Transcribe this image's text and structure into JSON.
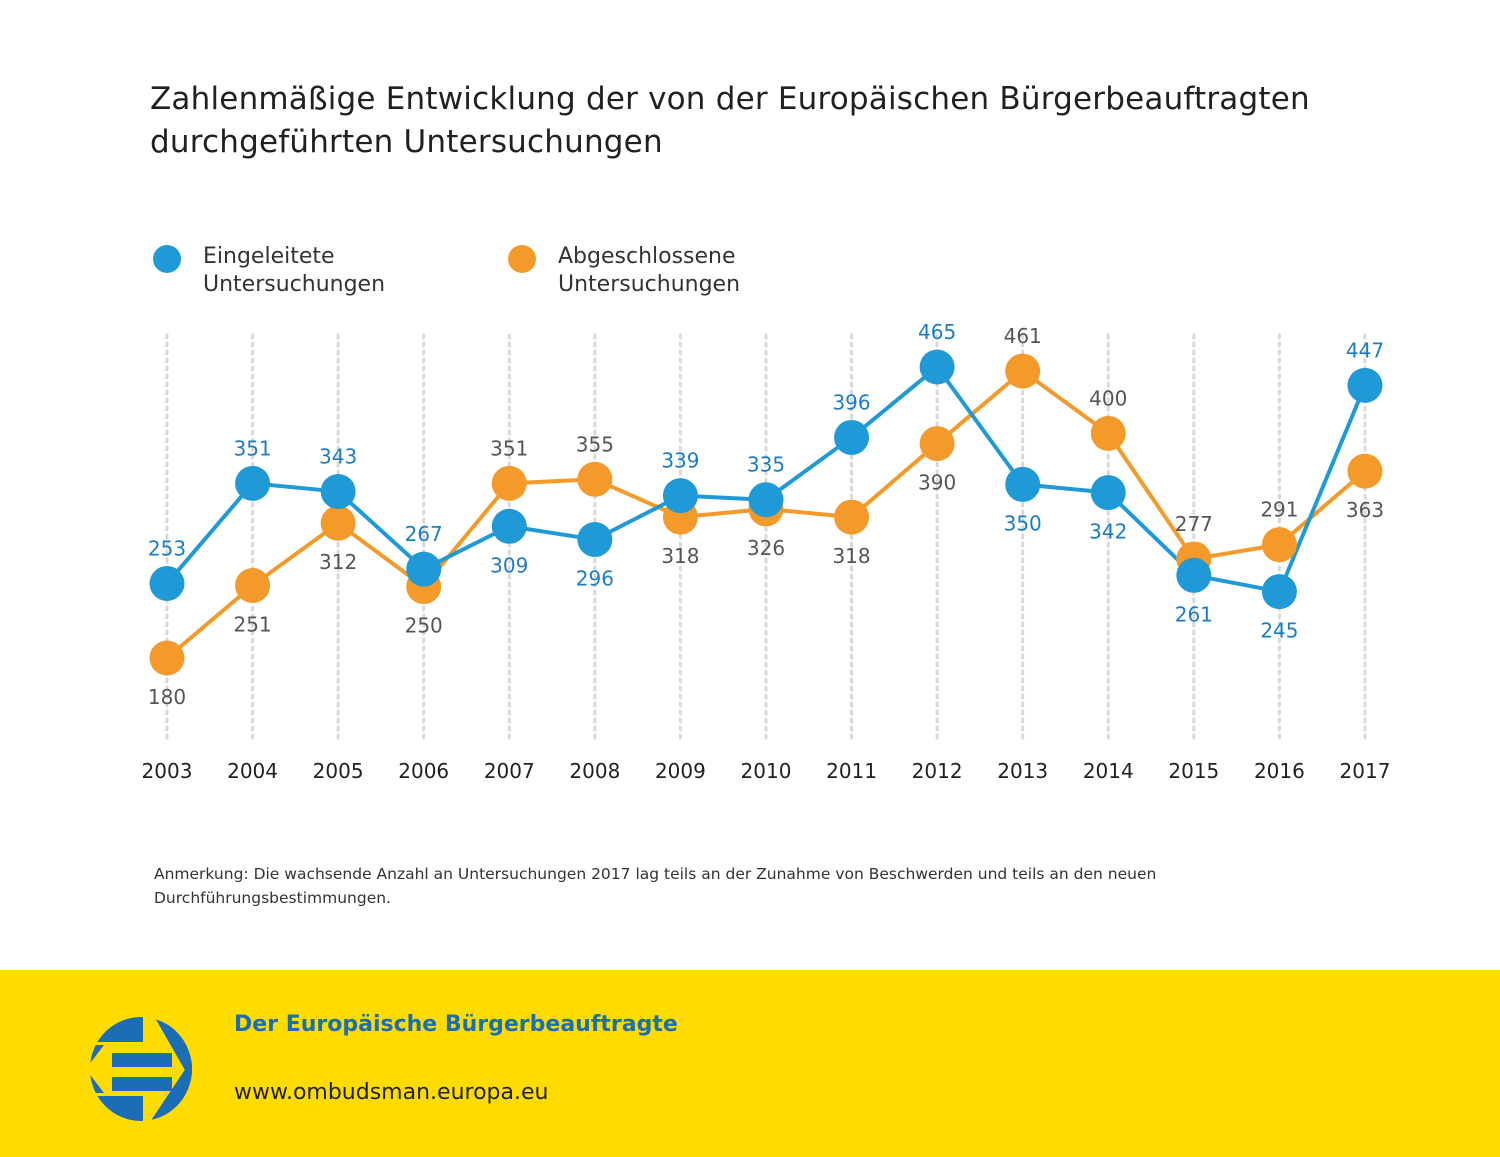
{
  "colors": {
    "eingeleitet": "#1f9ad6",
    "abgeschlossen": "#f39a2a",
    "label_blue": "#1b7dc4",
    "label_grey": "#555555",
    "footer_bg": "#ffdc00",
    "logo_blue": "#1b6db5",
    "grid": "#d9d9d9"
  },
  "chart_data": {
    "type": "line",
    "title": "Zahlenmäßige Entwicklung der von der Europäischen Bürgerbeauftragten durchgeführten Untersuchungen",
    "xlabel": "",
    "ylabel": "",
    "x": [
      "2003",
      "2004",
      "2005",
      "2006",
      "2007",
      "2008",
      "2009",
      "2010",
      "2011",
      "2012",
      "2013",
      "2014",
      "2015",
      "2016",
      "2017"
    ],
    "series": [
      {
        "name": "Eingeleitete Untersuchungen",
        "legend_label": "Eingeleitete\nUntersuchungen",
        "color": "#1f9ad6",
        "values": [
          253,
          351,
          343,
          267,
          309,
          296,
          339,
          335,
          396,
          465,
          350,
          342,
          261,
          245,
          447
        ],
        "label_positions": [
          "above",
          "above",
          "above",
          "above",
          "below",
          "below",
          "above",
          "above",
          "above",
          "above",
          "below",
          "below",
          "below",
          "below",
          "above"
        ]
      },
      {
        "name": "Abgeschlossene Untersuchungen",
        "legend_label": "Abgeschlossene\nUntersuchungen",
        "color": "#f39a2a",
        "values": [
          180,
          251,
          312,
          250,
          351,
          355,
          318,
          326,
          318,
          390,
          461,
          400,
          277,
          291,
          363
        ],
        "label_positions": [
          "below",
          "below",
          "below",
          "below",
          "above",
          "above",
          "below",
          "below",
          "below",
          "below",
          "above",
          "above",
          "above",
          "above",
          "below"
        ]
      }
    ],
    "grid": "vertical dotted lines per year",
    "legend": "top-left",
    "annotation": "Anmerkung: Die wachsende Anzahl an Untersuchungen 2017 lag teils an der Zunahme von Beschwerden und teils an den neuen Durchführungsbestimmungen."
  },
  "footer": {
    "organization": "Der Europäische Bürgerbeauftragte",
    "url": "www.ombudsman.europa.eu",
    "logo_icon": "european-ombudsman-logo"
  }
}
